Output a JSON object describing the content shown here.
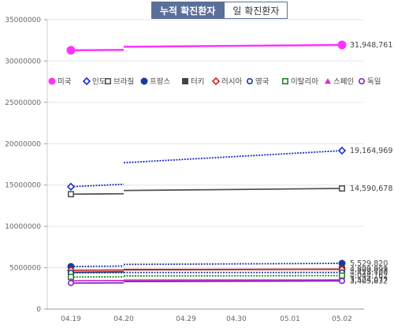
{
  "tabs": {
    "cumulative": "누적 확진환자",
    "daily": "일 확진환자"
  },
  "chart_data": {
    "type": "line",
    "categories": [
      "04.19",
      "04.20",
      "04.29",
      "04.30",
      "05.01",
      "05.02"
    ],
    "ylim": [
      0,
      35000000
    ],
    "yticks": [
      "0",
      "5000000",
      "10000000",
      "15000000",
      "20000000",
      "25000000",
      "30000000",
      "35000000"
    ],
    "grid": true,
    "legend_position": "middle",
    "series": [
      {
        "name": "미국",
        "color": "#ff33ff",
        "marker": "circle-filled",
        "line": "solid",
        "segments": [
          {
            "x": [
              0,
              1
            ],
            "y": [
              31300000,
              31350000
            ]
          },
          {
            "x": [
              1,
              5
            ],
            "y": [
              31720000,
              31948761
            ]
          }
        ],
        "last_label": "31,948,761"
      },
      {
        "name": "인도",
        "color": "#1a2ecc",
        "marker": "diamond-open",
        "line": "dotted",
        "segments": [
          {
            "x": [
              0,
              1
            ],
            "y": [
              14800000,
              15100000
            ]
          },
          {
            "x": [
              1,
              5
            ],
            "y": [
              17700000,
              19164969
            ]
          }
        ],
        "last_label": "19,164,969"
      },
      {
        "name": "브라질",
        "color": "#555555",
        "marker": "square-open",
        "line": "solid",
        "segments": [
          {
            "x": [
              0,
              1
            ],
            "y": [
              13900000,
              13950000
            ]
          },
          {
            "x": [
              1,
              5
            ],
            "y": [
              14340000,
              14590678
            ]
          }
        ],
        "last_label": "14,590,678"
      },
      {
        "name": "프랑스",
        "color": "#1a3aa0",
        "marker": "circle-filled",
        "line": "dotted",
        "segments": [
          {
            "x": [
              0,
              1
            ],
            "y": [
              5150000,
              5200000
            ]
          },
          {
            "x": [
              1,
              5
            ],
            "y": [
              5400000,
              5529820
            ]
          }
        ],
        "last_label": "5,529,820"
      },
      {
        "name": "터키",
        "color": "#444444",
        "marker": "square-filled",
        "line": "solid",
        "segments": [
          {
            "x": [
              0,
              1
            ],
            "y": [
              4450000,
              4500000
            ]
          },
          {
            "x": [
              1,
              5
            ],
            "y": [
              4750000,
              4820591
            ]
          }
        ],
        "last_label": "4,820,591"
      },
      {
        "name": "러시아",
        "color": "#cc2222",
        "marker": "diamond-open",
        "line": "solid",
        "segments": [
          {
            "x": [
              0,
              1
            ],
            "y": [
              4700000,
              4720000
            ]
          },
          {
            "x": [
              1,
              5
            ],
            "y": [
              4790000,
              4803099
            ]
          }
        ],
        "last_label": "4,803,099"
      },
      {
        "name": "영국",
        "color": "#1a3aa0",
        "marker": "circle-open",
        "line": "dotted",
        "segments": [
          {
            "x": [
              0,
              1
            ],
            "y": [
              4390000,
              4400000
            ]
          },
          {
            "x": [
              1,
              5
            ],
            "y": [
              4420000,
              4428700
            ]
          }
        ],
        "last_label": "4,428,700"
      },
      {
        "name": "이탈리아",
        "color": "#228822",
        "marker": "square-open",
        "line": "dotted",
        "segments": [
          {
            "x": [
              0,
              1
            ],
            "y": [
              3880000,
              3900000
            ]
          },
          {
            "x": [
              1,
              5
            ],
            "y": [
              4010000,
              4044762
            ]
          }
        ],
        "last_label": "4,044,762"
      },
      {
        "name": "스페인",
        "color": "#cc33cc",
        "marker": "triangle-filled",
        "line": "solid",
        "segments": [
          {
            "x": [
              0,
              1
            ],
            "y": [
              3420000,
              3440000
            ]
          },
          {
            "x": [
              1,
              5
            ],
            "y": [
              3500000,
              3524077
            ]
          }
        ],
        "last_label": "3,524,077"
      },
      {
        "name": "독일",
        "color": "#8822cc",
        "marker": "circle-open",
        "line": "solid",
        "segments": [
          {
            "x": [
              0,
              1
            ],
            "y": [
              3150000,
              3170000
            ]
          },
          {
            "x": [
              1,
              5
            ],
            "y": [
              3330000,
              3405832
            ]
          }
        ],
        "last_label": "3,405,832"
      }
    ]
  }
}
